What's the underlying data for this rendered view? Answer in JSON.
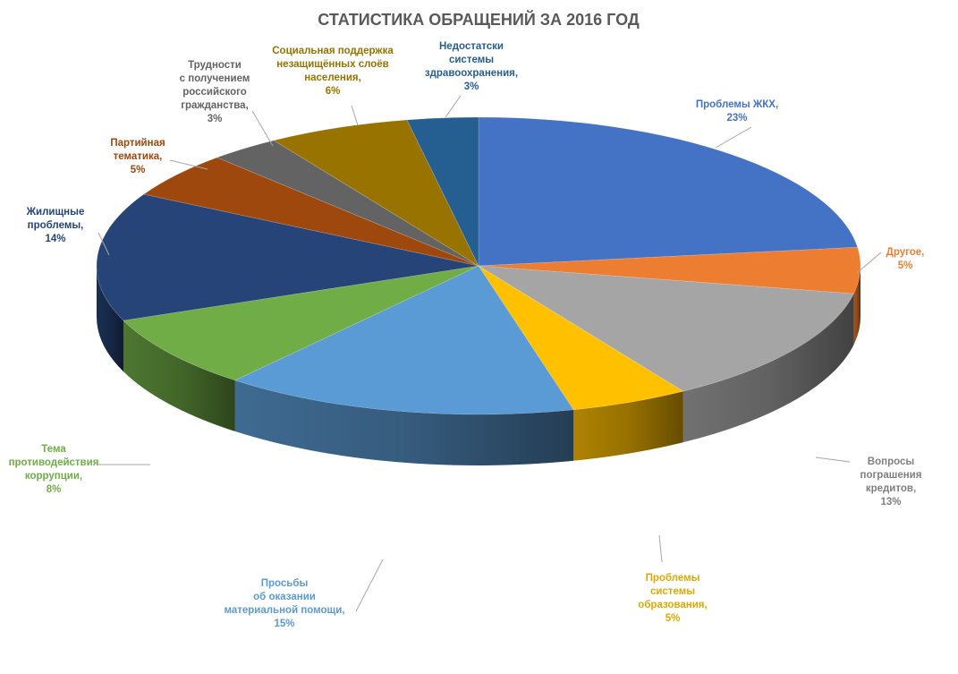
{
  "chart_data": {
    "type": "pie",
    "title": "СТАТИСТИКА ОБРАЩЕНИЙ ЗА 2016 ГОД",
    "slices": [
      {
        "label": [
          "Проблемы ЖКХ,",
          "23%"
        ],
        "value": 23,
        "color": "#4472c4"
      },
      {
        "label": [
          "Другое,",
          "5%"
        ],
        "value": 5,
        "color": "#ed7d31"
      },
      {
        "label": [
          "Вопросы",
          "пограшения",
          "кредитов,",
          "13%"
        ],
        "value": 13,
        "color": "#a5a5a5"
      },
      {
        "label": [
          "Проблемы",
          "системы",
          "образования,",
          "5%"
        ],
        "value": 5,
        "color": "#ffc000"
      },
      {
        "label": [
          "Просьбы",
          "об оказании",
          "материальной помощи,",
          "15%"
        ],
        "value": 15,
        "color": "#5b9bd5"
      },
      {
        "label": [
          "Тема",
          "противодействия",
          "коррупции,",
          "8%"
        ],
        "value": 8,
        "color": "#70ad47"
      },
      {
        "label": [
          "Жилищные",
          "проблемы,",
          "14%"
        ],
        "value": 14,
        "color": "#264478"
      },
      {
        "label": [
          "Партийная",
          "тематика,",
          "5%"
        ],
        "value": 5,
        "color": "#9e480e"
      },
      {
        "label": [
          "Трудности",
          "с получением",
          "российского",
          "гражданства,",
          "3%"
        ],
        "value": 3,
        "color": "#636363"
      },
      {
        "label": [
          "Социальная поддержка",
          "незащищённых слоёв",
          "населения,",
          "6%"
        ],
        "value": 6,
        "color": "#997300"
      },
      {
        "label": [
          "Недостатски",
          "системы",
          "здравоохранения,",
          "3%"
        ],
        "value": 3,
        "color": "#255e91"
      }
    ]
  }
}
